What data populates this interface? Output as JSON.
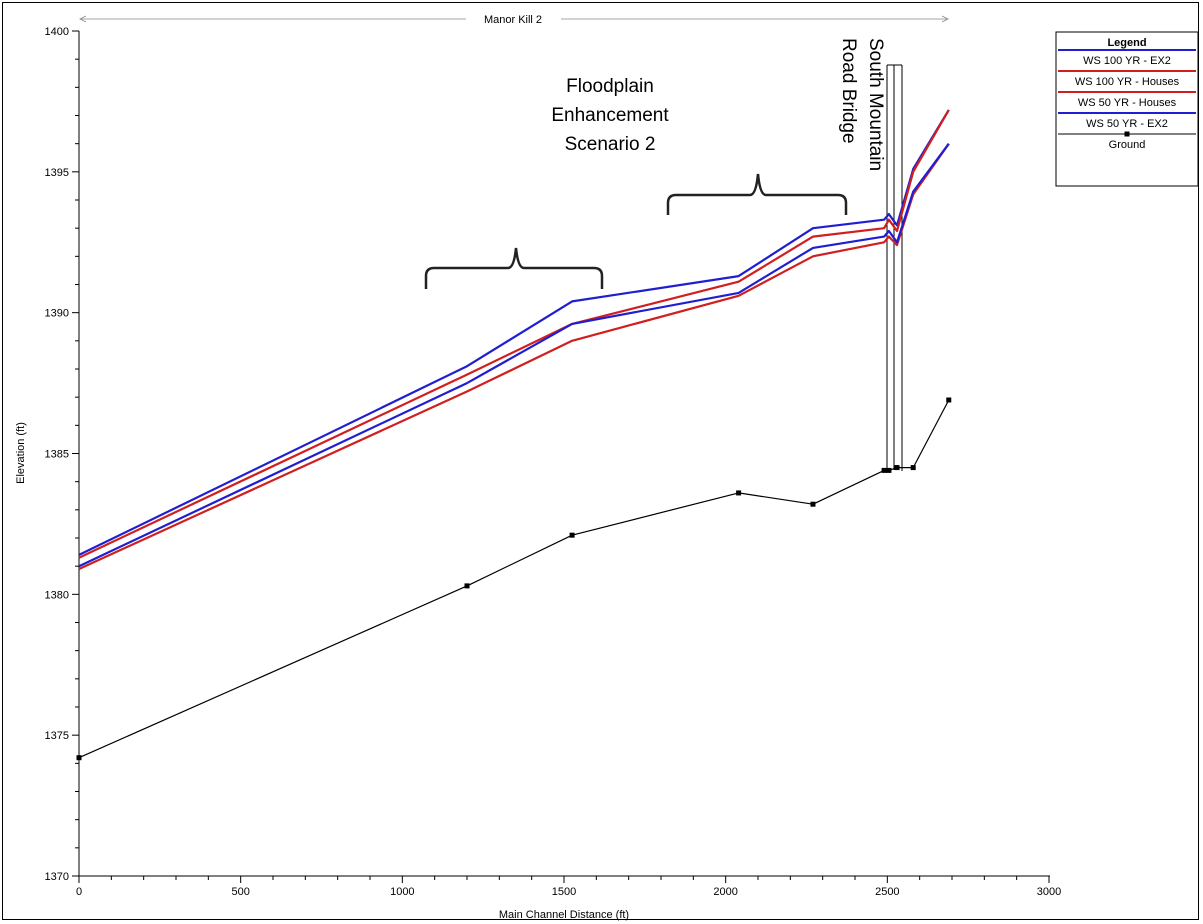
{
  "chart_data": {
    "type": "line",
    "title": "Manor Kill 2",
    "xlabel": "Main Channel Distance (ft)",
    "ylabel": "Elevation (ft)",
    "xlim": [
      0,
      3000
    ],
    "ylim": [
      1370,
      1400
    ],
    "xticks": [
      0,
      500,
      1000,
      1500,
      2000,
      2500,
      3000
    ],
    "yticks": [
      1370,
      1375,
      1380,
      1385,
      1390,
      1395,
      1400
    ],
    "grid": false,
    "legend": {
      "title": "Legend",
      "position": "right"
    },
    "series": [
      {
        "name": "WS  100 YR - EX2",
        "color": "#1f1fd1",
        "x": [
          0,
          1200,
          1525,
          2040,
          2270,
          2490,
          2505,
          2530,
          2580,
          2690
        ],
        "y": [
          1381.4,
          1388.1,
          1390.4,
          1391.3,
          1393.0,
          1393.3,
          1393.5,
          1393.1,
          1395.1,
          1397.2
        ]
      },
      {
        "name": "WS  100 YR - Houses",
        "color": "#d11f1f",
        "x": [
          0,
          1200,
          1525,
          2040,
          2270,
          2490,
          2505,
          2530,
          2580,
          2690
        ],
        "y": [
          1381.3,
          1387.8,
          1389.6,
          1391.1,
          1392.7,
          1393.0,
          1393.3,
          1392.9,
          1395.0,
          1397.2
        ]
      },
      {
        "name": "WS  50 YR - Houses",
        "color": "#d11f1f",
        "x": [
          0,
          1200,
          1525,
          2040,
          2270,
          2490,
          2505,
          2530,
          2580,
          2690
        ],
        "y": [
          1380.9,
          1387.2,
          1389.0,
          1390.6,
          1392.0,
          1392.5,
          1392.7,
          1392.4,
          1394.2,
          1396.0
        ]
      },
      {
        "name": "WS  50 YR - EX2",
        "color": "#1f1fd1",
        "x": [
          0,
          1200,
          1525,
          2040,
          2270,
          2490,
          2505,
          2530,
          2580,
          2690
        ],
        "y": [
          1381.0,
          1387.5,
          1389.6,
          1390.7,
          1392.3,
          1392.7,
          1392.9,
          1392.5,
          1394.3,
          1396.0
        ]
      },
      {
        "name": "Ground",
        "color": "#000000",
        "markers": true,
        "x": [
          0,
          1200,
          1525,
          2040,
          2270,
          2490,
          2505,
          2530,
          2580,
          2690
        ],
        "y": [
          1374.2,
          1380.3,
          1382.1,
          1383.6,
          1383.2,
          1384.4,
          1384.4,
          1384.5,
          1384.5,
          1386.9
        ]
      }
    ],
    "annotations": {
      "scenario": [
        "Floodplain",
        "Enhancement",
        "Scenario 2"
      ],
      "bridge": [
        "South Mountain",
        "Road Bridge"
      ]
    }
  }
}
